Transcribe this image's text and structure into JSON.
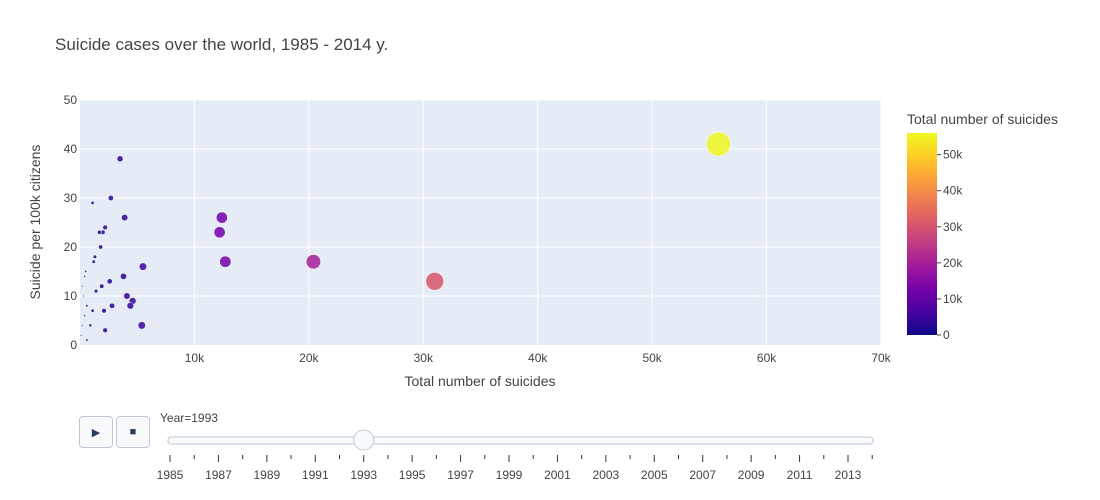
{
  "chart_data": {
    "type": "scatter",
    "title": "Suicide cases over the world, 1985 - 2014 y.",
    "xlabel": "Total number of suicides",
    "ylabel": "Suicide per 100k citizens",
    "xlim": [
      0,
      70000
    ],
    "ylim": [
      0,
      50
    ],
    "x_ticks": [
      {
        "value": 10000,
        "label": "10k"
      },
      {
        "value": 20000,
        "label": "20k"
      },
      {
        "value": 30000,
        "label": "30k"
      },
      {
        "value": 40000,
        "label": "40k"
      },
      {
        "value": 50000,
        "label": "50k"
      },
      {
        "value": 60000,
        "label": "60k"
      },
      {
        "value": 70000,
        "label": "70k"
      }
    ],
    "y_ticks": [
      {
        "value": 0,
        "label": "0"
      },
      {
        "value": 10,
        "label": "10"
      },
      {
        "value": 20,
        "label": "20"
      },
      {
        "value": 30,
        "label": "30"
      },
      {
        "value": 40,
        "label": "40"
      },
      {
        "value": 50,
        "label": "50"
      }
    ],
    "grid": true,
    "colorscale": "plasma",
    "colorbar": {
      "title": "Total number of suicides",
      "range": [
        0,
        56000
      ],
      "ticks": [
        {
          "value": 0,
          "label": "0"
        },
        {
          "value": 10000,
          "label": "10k"
        },
        {
          "value": 20000,
          "label": "20k"
        },
        {
          "value": 30000,
          "label": "30k"
        },
        {
          "value": 40000,
          "label": "40k"
        },
        {
          "value": 50000,
          "label": "50k"
        }
      ]
    },
    "current_frame": "Year=1993",
    "points": [
      {
        "x": 55800,
        "y": 41
      },
      {
        "x": 31000,
        "y": 13
      },
      {
        "x": 20400,
        "y": 17
      },
      {
        "x": 12400,
        "y": 26
      },
      {
        "x": 12200,
        "y": 23
      },
      {
        "x": 12700,
        "y": 17
      },
      {
        "x": 5500,
        "y": 16
      },
      {
        "x": 5400,
        "y": 4
      },
      {
        "x": 4600,
        "y": 9
      },
      {
        "x": 4400,
        "y": 8
      },
      {
        "x": 4100,
        "y": 10
      },
      {
        "x": 3800,
        "y": 14
      },
      {
        "x": 3900,
        "y": 26
      },
      {
        "x": 3500,
        "y": 38
      },
      {
        "x": 2700,
        "y": 30
      },
      {
        "x": 2800,
        "y": 8
      },
      {
        "x": 2600,
        "y": 13
      },
      {
        "x": 2200,
        "y": 24
      },
      {
        "x": 2000,
        "y": 23
      },
      {
        "x": 1700,
        "y": 23
      },
      {
        "x": 1800,
        "y": 20
      },
      {
        "x": 1900,
        "y": 12
      },
      {
        "x": 2100,
        "y": 7
      },
      {
        "x": 2200,
        "y": 3
      },
      {
        "x": 1300,
        "y": 18
      },
      {
        "x": 1200,
        "y": 17
      },
      {
        "x": 1400,
        "y": 11
      },
      {
        "x": 1100,
        "y": 29
      },
      {
        "x": 1100,
        "y": 7
      },
      {
        "x": 900,
        "y": 4
      },
      {
        "x": 600,
        "y": 8
      },
      {
        "x": 500,
        "y": 15
      },
      {
        "x": 400,
        "y": 14
      },
      {
        "x": 300,
        "y": 10
      },
      {
        "x": 200,
        "y": 12
      },
      {
        "x": 400,
        "y": 6
      },
      {
        "x": 200,
        "y": 4
      },
      {
        "x": 600,
        "y": 1
      },
      {
        "x": 100,
        "y": 2
      }
    ]
  },
  "slider": {
    "current_label": "Year=1993",
    "min_year": 1985,
    "max_year": 2014,
    "current_year": 1993,
    "tick_labels": [
      "1985",
      "1987",
      "1989",
      "1991",
      "1993",
      "1995",
      "1997",
      "1999",
      "2001",
      "2003",
      "2005",
      "2007",
      "2009",
      "2011",
      "2013"
    ]
  },
  "controls": {
    "play_icon": "▶",
    "stop_icon": "■"
  }
}
